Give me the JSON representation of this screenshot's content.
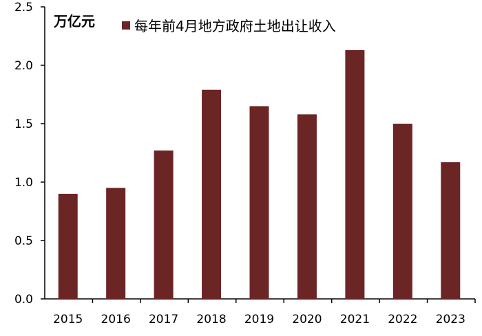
{
  "chart_data": {
    "type": "bar",
    "title": "",
    "ylabel": "万亿元",
    "xlabel": "",
    "categories": [
      "2015",
      "2016",
      "2017",
      "2018",
      "2019",
      "2020",
      "2021",
      "2022",
      "2023"
    ],
    "series": [
      {
        "name": "每年前4月地方政府土地出让收入",
        "color": "#6b2525",
        "values": [
          0.9,
          0.95,
          1.27,
          1.79,
          1.65,
          1.58,
          2.13,
          1.5,
          1.17
        ]
      }
    ],
    "ylim": [
      0,
      2.5
    ],
    "yticks": [
      "0.0",
      "0.5",
      "1.0",
      "1.5",
      "2.0",
      "2.5"
    ],
    "grid": false,
    "legend_position": "top-left"
  }
}
